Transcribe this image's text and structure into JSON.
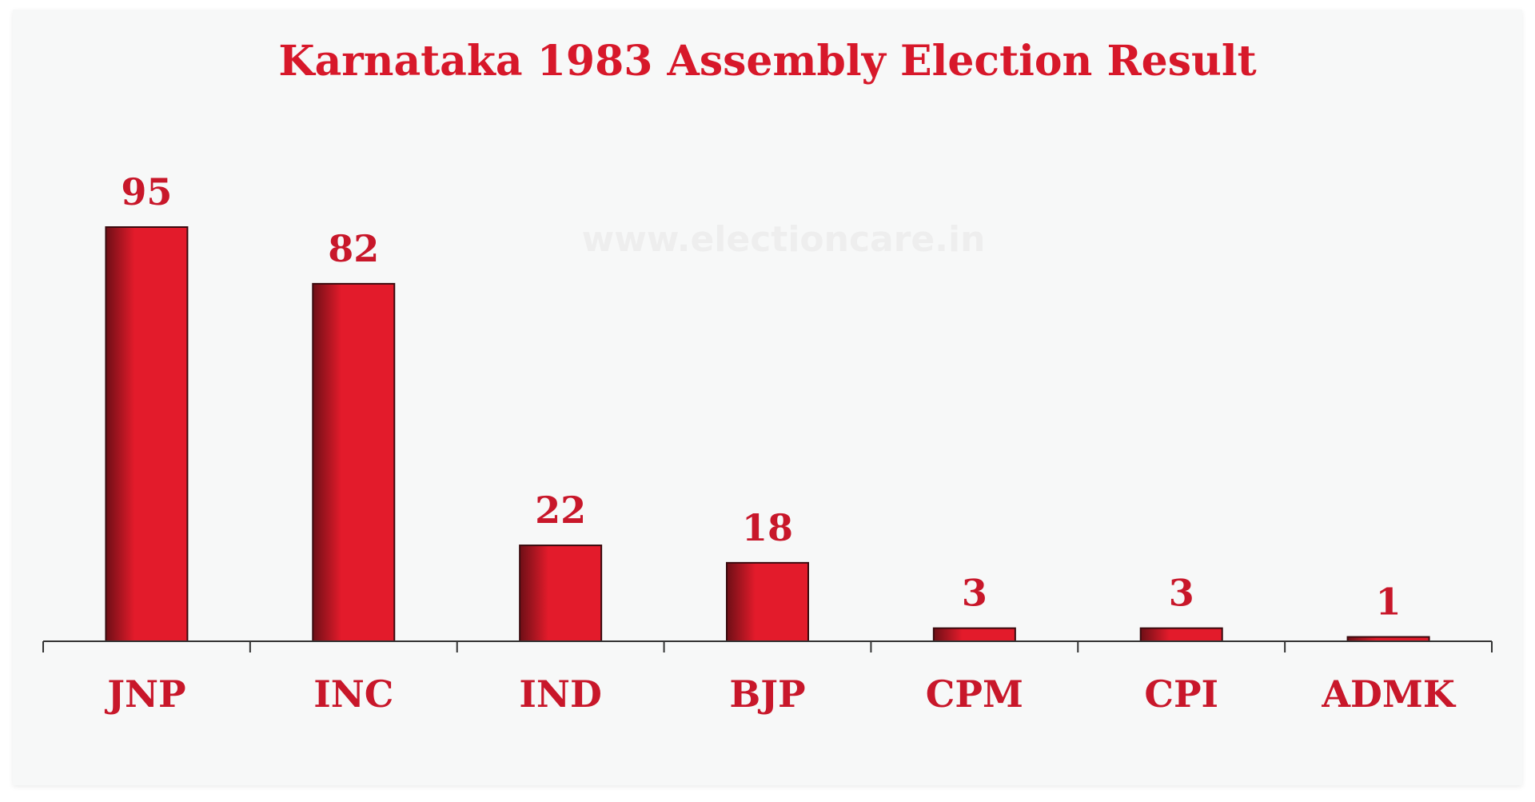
{
  "chart_data": {
    "type": "bar",
    "title": "Karnataka 1983 Assembly Election Result",
    "watermark": "www.electioncare.in",
    "categories": [
      "JNP",
      "INC",
      "IND",
      "BJP",
      "CPM",
      "CPI",
      "ADMK"
    ],
    "values": [
      95,
      82,
      22,
      18,
      3,
      3,
      1
    ],
    "data_labels": [
      "95",
      "82",
      "22",
      "18",
      "3",
      "3",
      "1"
    ],
    "xlabel": "",
    "ylabel": "",
    "ylim": [
      0,
      95
    ],
    "grid": false,
    "legend": "none",
    "colors": {
      "bar": "#e31b2b",
      "bar_shade": "#6e0f16",
      "text": "#c8172a",
      "axis": "#333333",
      "background": "#f7f8f8"
    }
  }
}
